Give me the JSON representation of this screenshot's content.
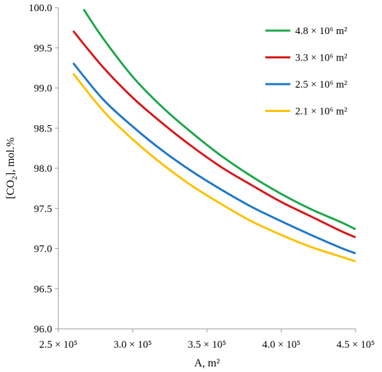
{
  "chart_data": {
    "type": "line",
    "title": "",
    "xlabel": "A, m²",
    "ylabel_parts": {
      "prefix": "[CO",
      "sub": "2",
      "suffix": "], mol.%"
    },
    "xlim": [
      250000,
      450000
    ],
    "ylim": [
      96.0,
      100.0
    ],
    "x_ticks": [
      {
        "value": 250000,
        "label": "2.5 × 10⁵"
      },
      {
        "value": 300000,
        "label": "3.0 × 10⁵"
      },
      {
        "value": 350000,
        "label": "3.5 × 10⁵"
      },
      {
        "value": 400000,
        "label": "4.0 × 10⁵"
      },
      {
        "value": 450000,
        "label": "4.5 × 10⁵"
      }
    ],
    "y_ticks": [
      {
        "value": 96.0,
        "label": "96.0"
      },
      {
        "value": 96.5,
        "label": "96.5"
      },
      {
        "value": 97.0,
        "label": "97.0"
      },
      {
        "value": 97.5,
        "label": "97.5"
      },
      {
        "value": 98.0,
        "label": "98.0"
      },
      {
        "value": 98.5,
        "label": "98.5"
      },
      {
        "value": 99.0,
        "label": "99.0"
      },
      {
        "value": 99.5,
        "label": "99.5"
      },
      {
        "value": 100.0,
        "label": "100.0"
      }
    ],
    "grid": false,
    "legend_position": "top-right",
    "series": [
      {
        "name": "4.8 × 10⁶ m²",
        "color": "#1ea64a",
        "x": [
          267000,
          280000,
          300000,
          320000,
          340000,
          360000,
          380000,
          400000,
          420000,
          440000,
          450000
        ],
        "y": [
          99.98,
          99.62,
          99.14,
          98.76,
          98.44,
          98.15,
          97.9,
          97.68,
          97.49,
          97.33,
          97.24
        ]
      },
      {
        "name": "3.3 × 10⁶ m²",
        "color": "#d7191c",
        "x": [
          260000,
          280000,
          300000,
          320000,
          340000,
          360000,
          380000,
          400000,
          420000,
          440000,
          450000
        ],
        "y": [
          99.71,
          99.26,
          98.88,
          98.56,
          98.27,
          98.01,
          97.79,
          97.58,
          97.4,
          97.22,
          97.14
        ]
      },
      {
        "name": "2.5 × 10⁶ m²",
        "color": "#1f78c8",
        "x": [
          260000,
          280000,
          300000,
          320000,
          340000,
          360000,
          380000,
          400000,
          420000,
          440000,
          450000
        ],
        "y": [
          99.31,
          98.86,
          98.52,
          98.22,
          97.96,
          97.73,
          97.52,
          97.34,
          97.17,
          97.01,
          96.94
        ]
      },
      {
        "name": "2.1 × 10⁶ m²",
        "color": "#ffc000",
        "x": [
          260000,
          280000,
          300000,
          320000,
          340000,
          360000,
          380000,
          400000,
          420000,
          440000,
          450000
        ],
        "y": [
          99.18,
          98.72,
          98.36,
          98.05,
          97.78,
          97.55,
          97.34,
          97.17,
          97.02,
          96.9,
          96.84
        ]
      }
    ]
  }
}
